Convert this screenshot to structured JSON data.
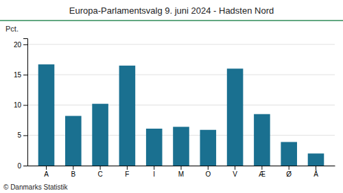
{
  "chart_data": {
    "type": "bar",
    "title": "Europa-Parlamentsvalg 9. juni 2024 - Hadsten Nord",
    "ylabel": "Pct.",
    "annotations": [
      "© Danmarks Statistik"
    ],
    "categories": [
      "A",
      "B",
      "C",
      "F",
      "I",
      "M",
      "O",
      "V",
      "Æ",
      "Ø",
      "Å"
    ],
    "values": [
      16.7,
      8.2,
      10.2,
      16.5,
      6.1,
      6.4,
      5.9,
      16.0,
      8.5,
      3.9,
      2.0
    ],
    "color": "#1a7090",
    "ylim": [
      0,
      21
    ],
    "yticks": [
      0,
      5,
      10,
      15,
      20
    ],
    "grid": true
  }
}
